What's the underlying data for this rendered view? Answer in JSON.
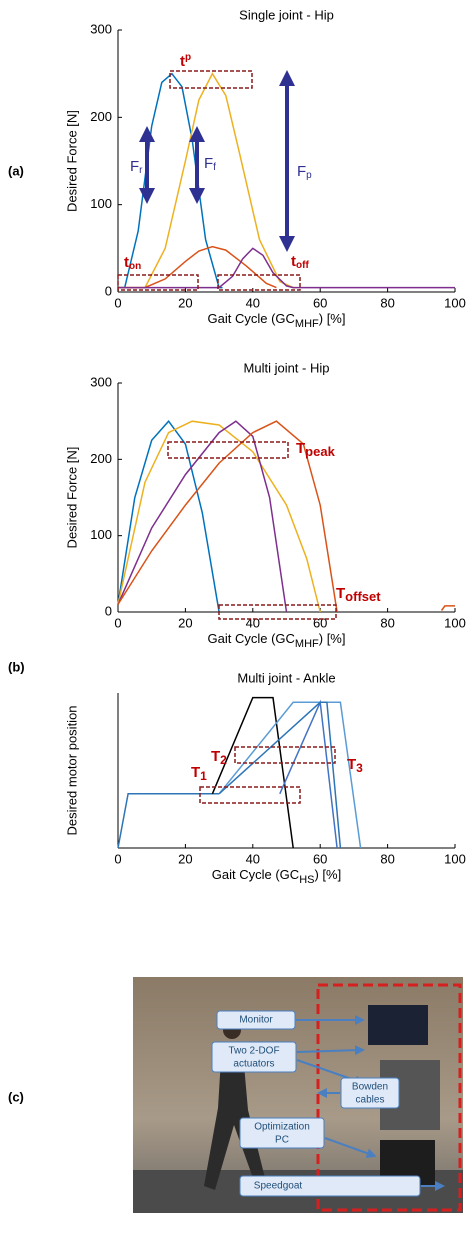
{
  "panel_labels": [
    "(a)",
    "(b)",
    "(c)"
  ],
  "chart_data": [
    {
      "type": "line",
      "title": "Single joint - Hip",
      "ylabel": "Desired Force [N]",
      "xlabel": [
        "Gait Cycle (GC",
        "MHF",
        ") [%]"
      ],
      "xlim": [
        0,
        100
      ],
      "ylim": [
        0,
        300
      ],
      "xticks": [
        0,
        20,
        40,
        60,
        80,
        100
      ],
      "yticks": [
        0,
        100,
        200,
        300
      ],
      "series": [
        {
          "color": "#0072bd",
          "x": [
            0,
            2,
            6,
            10,
            13,
            16,
            19,
            22,
            26,
            30,
            31
          ],
          "values": [
            5,
            5,
            70,
            190,
            240,
            250,
            235,
            175,
            60,
            5,
            5
          ]
        },
        {
          "color": "#edb120",
          "x": [
            0,
            8,
            14,
            20,
            24,
            28,
            32,
            36,
            42,
            48,
            52,
            53
          ],
          "values": [
            5,
            5,
            50,
            150,
            220,
            250,
            225,
            160,
            60,
            12,
            5,
            5
          ]
        },
        {
          "color": "#d95319",
          "x": [
            0,
            8,
            14,
            20,
            24,
            28,
            32,
            38,
            44,
            47
          ],
          "values": [
            5,
            5,
            15,
            35,
            47,
            52,
            48,
            30,
            10,
            5
          ]
        },
        {
          "color": "#7e2f8e",
          "x": [
            0,
            30,
            34,
            37,
            40,
            43,
            46,
            50,
            52,
            100
          ],
          "values": [
            5,
            5,
            18,
            38,
            50,
            42,
            22,
            7,
            5,
            5
          ]
        }
      ],
      "annotations": [
        {
          "text": "t",
          "sub": "p"
        },
        {
          "text": "F",
          "sub": "r"
        },
        {
          "text": "F",
          "sub": "f"
        },
        {
          "text": "F",
          "sub": "p"
        },
        {
          "text": "t",
          "sub": "on"
        },
        {
          "text": "t",
          "sub": "off"
        }
      ]
    },
    {
      "type": "line",
      "title": "Multi joint - Hip",
      "ylabel": "Desired Force [N]",
      "xlabel": [
        "Gait Cycle (GC",
        "MHF",
        ") [%]"
      ],
      "xlim": [
        0,
        100
      ],
      "ylim": [
        0,
        300
      ],
      "xticks": [
        0,
        20,
        40,
        60,
        80,
        100
      ],
      "yticks": [
        0,
        100,
        200,
        300
      ],
      "series": [
        {
          "color": "#0072bd",
          "x": [
            0,
            5,
            10,
            15,
            20,
            25,
            30
          ],
          "values": [
            10,
            150,
            225,
            250,
            220,
            130,
            0
          ]
        },
        {
          "color": "#edb120",
          "x": [
            0,
            8,
            15,
            22,
            30,
            40,
            50,
            56,
            60
          ],
          "values": [
            10,
            170,
            235,
            250,
            245,
            210,
            140,
            70,
            0
          ]
        },
        {
          "color": "#7e2f8e",
          "x": [
            0,
            10,
            20,
            30,
            35,
            40,
            45,
            50
          ],
          "values": [
            10,
            110,
            180,
            235,
            250,
            230,
            150,
            0
          ]
        },
        {
          "color": "#d95319",
          "x": [
            0,
            10,
            20,
            30,
            40,
            47,
            55,
            60,
            65
          ],
          "values": [
            10,
            80,
            140,
            195,
            235,
            250,
            220,
            140,
            0
          ]
        },
        {
          "color": "#d95319",
          "x": [
            96,
            97,
            100
          ],
          "values": [
            2,
            8,
            8
          ]
        }
      ],
      "annotations": [
        {
          "text": "T",
          "sub": "peak"
        },
        {
          "text": "T",
          "sub": "offset"
        }
      ]
    },
    {
      "type": "line",
      "title": "Multi joint - Ankle",
      "ylabel": "Desired motor position",
      "xlabel": [
        "Gait Cycle (GC",
        "HS",
        ") [%]"
      ],
      "xlim": [
        0,
        100
      ],
      "ylim": [
        0,
        1
      ],
      "xticks": [
        0,
        20,
        40,
        60,
        80,
        100
      ],
      "yticks": [],
      "series": [
        {
          "color": "#2e75b6",
          "x": [
            0,
            3,
            30
          ],
          "values": [
            0,
            0.35,
            0.35
          ]
        },
        {
          "color": "#000000",
          "x": [
            28,
            40,
            46,
            52
          ],
          "values": [
            0.35,
            0.97,
            0.97,
            0
          ]
        },
        {
          "color": "#5b9bd5",
          "x": [
            30,
            52,
            66,
            72
          ],
          "values": [
            0.35,
            0.94,
            0.94,
            0
          ]
        },
        {
          "color": "#4472c4",
          "x": [
            48,
            60,
            65
          ],
          "values": [
            0.35,
            0.94,
            0
          ]
        },
        {
          "color": "#2e75b6",
          "x": [
            30,
            60,
            62,
            66
          ],
          "values": [
            0.35,
            0.94,
            0.94,
            0
          ]
        }
      ],
      "annotations": [
        {
          "text": "T",
          "sub": "1"
        },
        {
          "text": "T",
          "sub": "2"
        },
        {
          "text": "T",
          "sub": "3"
        }
      ]
    }
  ],
  "photo": {
    "labels": [
      [
        "Monitor"
      ],
      [
        "Two 2-DOF",
        "actuators"
      ],
      [
        "Bowden",
        "cables"
      ],
      [
        "Optimization",
        "PC"
      ],
      [
        "Speedgoat"
      ]
    ]
  }
}
